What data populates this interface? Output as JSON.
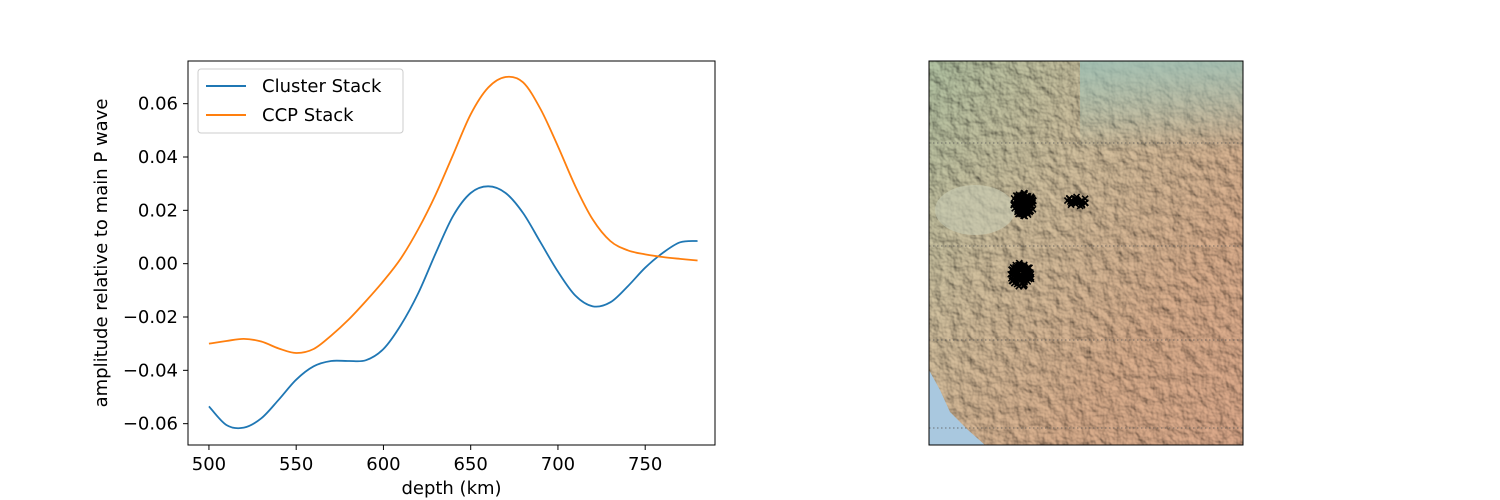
{
  "colors": {
    "cluster": "#1f77b4",
    "ccp": "#ff7f0e",
    "axes": "#000000",
    "map_marker": "#000000"
  },
  "chart_data": [
    {
      "type": "line",
      "title": "",
      "xlabel": "depth (km)",
      "ylabel": "amplitude relative to main P wave",
      "xlim": [
        488,
        790
      ],
      "ylim": [
        -0.068,
        0.076
      ],
      "grid": false,
      "legend_position": "upper-left",
      "x_ticks": [
        500,
        550,
        600,
        650,
        700,
        750
      ],
      "x_tick_labels": [
        "500",
        "550",
        "600",
        "650",
        "700",
        "750"
      ],
      "y_ticks": [
        -0.06,
        -0.04,
        -0.02,
        0.0,
        0.02,
        0.04,
        0.06
      ],
      "y_tick_labels": [
        "−0.06",
        "−0.04",
        "−0.02",
        "0.00",
        "0.02",
        "0.04",
        "0.06"
      ],
      "series": [
        {
          "name": "Cluster Stack",
          "color": "#1f77b4",
          "x": [
            500,
            510,
            520,
            530,
            540,
            550,
            560,
            570,
            580,
            590,
            600,
            610,
            620,
            630,
            640,
            650,
            660,
            670,
            680,
            690,
            700,
            710,
            720,
            730,
            740,
            750,
            760,
            770,
            780
          ],
          "y": [
            -0.0535,
            -0.0605,
            -0.0615,
            -0.058,
            -0.051,
            -0.0435,
            -0.0385,
            -0.0365,
            -0.0365,
            -0.0362,
            -0.032,
            -0.023,
            -0.011,
            0.004,
            0.018,
            0.0265,
            0.029,
            0.0265,
            0.019,
            0.008,
            -0.003,
            -0.012,
            -0.016,
            -0.0145,
            -0.0085,
            -0.0015,
            0.004,
            0.008,
            0.0085
          ]
        },
        {
          "name": "CCP Stack",
          "color": "#ff7f0e",
          "x": [
            500,
            510,
            520,
            530,
            540,
            550,
            560,
            570,
            580,
            590,
            600,
            610,
            620,
            630,
            640,
            650,
            660,
            670,
            680,
            690,
            700,
            710,
            720,
            730,
            740,
            750,
            760,
            770,
            780
          ],
          "y": [
            -0.03,
            -0.029,
            -0.0282,
            -0.0292,
            -0.0318,
            -0.0335,
            -0.032,
            -0.027,
            -0.021,
            -0.014,
            -0.0065,
            0.002,
            0.013,
            0.026,
            0.041,
            0.056,
            0.066,
            0.07,
            0.068,
            0.058,
            0.044,
            0.029,
            0.0165,
            0.0085,
            0.005,
            0.0035,
            0.0025,
            0.0018,
            0.0012
          ]
        }
      ]
    },
    {
      "type": "scatter",
      "title": "",
      "description": "shaded-relief map with marker clusters",
      "marker": "x",
      "clusters": [
        {
          "lon": -111.3,
          "lat": 44.2
        },
        {
          "lon": -108.9,
          "lat": 44.3
        },
        {
          "lon": -111.4,
          "lat": 42.1
        }
      ]
    }
  ]
}
